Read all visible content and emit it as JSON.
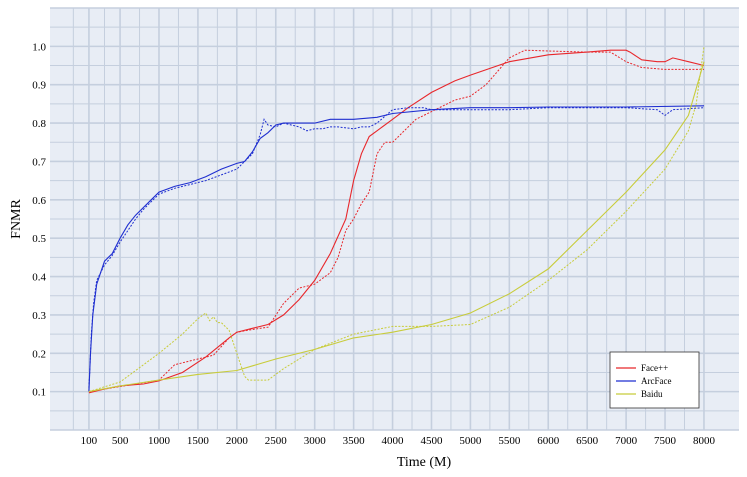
{
  "chart_data": {
    "type": "line",
    "xlabel": "Time (M)",
    "ylabel": "FNMR",
    "xticks": [
      "100",
      "500",
      "1000",
      "1500",
      "2000",
      "2500",
      "3000",
      "3500",
      "4000",
      "4500",
      "5000",
      "5500",
      "6000",
      "6500",
      "7000",
      "7500",
      "8000"
    ],
    "yticks": [
      "0.1",
      "0.2",
      "0.3",
      "0.4",
      "0.5",
      "0.6",
      "0.7",
      "0.8",
      "0.9",
      "1.0"
    ],
    "xlim": [
      -400,
      8450
    ],
    "ylim": [
      0,
      1.1
    ],
    "grid": true,
    "legend_position": "bottom-right",
    "colors": {
      "face": "#e8272b",
      "arc": "#1f2fd0",
      "baidu": "#c8cc3a",
      "grid": "#c5cfde",
      "plot_bg": "#e8edf5"
    },
    "series": [
      {
        "name": "Face++",
        "style": "solid",
        "color": "#e8272b",
        "x": [
          100,
          300,
          500,
          800,
          1000,
          1300,
          1600,
          1900,
          2000,
          2200,
          2400,
          2600,
          2800,
          3000,
          3200,
          3400,
          3500,
          3600,
          3700,
          3800,
          4000,
          4200,
          4500,
          4800,
          5000,
          5500,
          6000,
          6500,
          6800,
          7000,
          7050,
          7200,
          7400,
          7500,
          7600,
          7800,
          8000
        ],
        "y": [
          0.097,
          0.107,
          0.115,
          0.12,
          0.128,
          0.15,
          0.19,
          0.24,
          0.255,
          0.265,
          0.275,
          0.3,
          0.34,
          0.39,
          0.46,
          0.55,
          0.65,
          0.72,
          0.765,
          0.78,
          0.81,
          0.84,
          0.88,
          0.91,
          0.925,
          0.96,
          0.978,
          0.985,
          0.99,
          0.99,
          0.985,
          0.965,
          0.96,
          0.96,
          0.97,
          0.96,
          0.95
        ]
      },
      {
        "name": "Face++ (dotted)",
        "style": "dotted",
        "color": "#e8272b",
        "x": [
          100,
          400,
          700,
          1000,
          1200,
          1400,
          1500,
          1700,
          1900,
          2000,
          2200,
          2400,
          2600,
          2800,
          3000,
          3200,
          3300,
          3400,
          3500,
          3600,
          3700,
          3800,
          3900,
          4000,
          4300,
          4500,
          4800,
          5000,
          5200,
          5500,
          5700,
          6000,
          6500,
          6800,
          7000,
          7200,
          7500,
          8000
        ],
        "y": [
          0.1,
          0.11,
          0.12,
          0.13,
          0.17,
          0.18,
          0.185,
          0.195,
          0.24,
          0.255,
          0.262,
          0.268,
          0.33,
          0.37,
          0.38,
          0.41,
          0.45,
          0.52,
          0.55,
          0.59,
          0.62,
          0.72,
          0.75,
          0.75,
          0.81,
          0.83,
          0.86,
          0.87,
          0.9,
          0.97,
          0.99,
          0.988,
          0.985,
          0.985,
          0.96,
          0.945,
          0.94,
          0.94
        ]
      },
      {
        "name": "ArcFace",
        "style": "solid",
        "color": "#1f2fd0",
        "x": [
          100,
          120,
          150,
          200,
          250,
          300,
          400,
          500,
          600,
          700,
          800,
          900,
          1000,
          1200,
          1400,
          1600,
          1800,
          2000,
          2100,
          2200,
          2300,
          2400,
          2500,
          2600,
          2800,
          3000,
          3200,
          3500,
          3800,
          4000,
          4500,
          5000,
          5500,
          6000,
          6500,
          7000,
          8000
        ],
        "y": [
          0.1,
          0.2,
          0.3,
          0.38,
          0.41,
          0.44,
          0.46,
          0.5,
          0.535,
          0.56,
          0.58,
          0.6,
          0.62,
          0.635,
          0.645,
          0.66,
          0.68,
          0.695,
          0.7,
          0.725,
          0.76,
          0.775,
          0.795,
          0.8,
          0.8,
          0.8,
          0.81,
          0.81,
          0.815,
          0.825,
          0.835,
          0.84,
          0.84,
          0.842,
          0.842,
          0.842,
          0.845
        ]
      },
      {
        "name": "ArcFace (dotted)",
        "style": "dotted",
        "color": "#1f2fd0",
        "x": [
          100,
          110,
          130,
          160,
          200,
          300,
          400,
          500,
          600,
          700,
          800,
          900,
          1000,
          1200,
          1400,
          1600,
          1800,
          2000,
          2100,
          2200,
          2300,
          2350,
          2400,
          2500,
          2600,
          2800,
          2900,
          3000,
          3100,
          3200,
          3300,
          3500,
          3600,
          3700,
          3800,
          4000,
          4200,
          4400,
          4500,
          4700,
          5000,
          5500,
          6000,
          6500,
          7000,
          7400,
          7500,
          7600,
          8000
        ],
        "y": [
          0.11,
          0.15,
          0.25,
          0.33,
          0.39,
          0.43,
          0.455,
          0.49,
          0.52,
          0.55,
          0.575,
          0.595,
          0.615,
          0.63,
          0.64,
          0.65,
          0.665,
          0.68,
          0.7,
          0.72,
          0.77,
          0.81,
          0.795,
          0.79,
          0.8,
          0.79,
          0.78,
          0.785,
          0.785,
          0.79,
          0.79,
          0.785,
          0.79,
          0.79,
          0.8,
          0.835,
          0.84,
          0.84,
          0.835,
          0.835,
          0.835,
          0.835,
          0.84,
          0.84,
          0.84,
          0.835,
          0.82,
          0.835,
          0.84
        ]
      },
      {
        "name": "Baidu",
        "style": "solid",
        "color": "#c8cc3a",
        "x": [
          100,
          500,
          1000,
          1500,
          2000,
          2500,
          3000,
          3500,
          4000,
          4500,
          5000,
          5500,
          6000,
          6500,
          7000,
          7500,
          7800,
          8000
        ],
        "y": [
          0.1,
          0.115,
          0.13,
          0.145,
          0.155,
          0.185,
          0.21,
          0.24,
          0.255,
          0.275,
          0.305,
          0.355,
          0.42,
          0.52,
          0.62,
          0.73,
          0.82,
          0.96
        ]
      },
      {
        "name": "Baidu (dotted)",
        "style": "dotted",
        "color": "#c8cc3a",
        "x": [
          100,
          500,
          1000,
          1300,
          1500,
          1600,
          1650,
          1700,
          1750,
          1800,
          1900,
          2000,
          2100,
          2150,
          2200,
          2400,
          2600,
          3000,
          3500,
          4000,
          4500,
          5000,
          5500,
          6000,
          6500,
          7000,
          7500,
          7800,
          7900,
          8000
        ],
        "y": [
          0.1,
          0.125,
          0.2,
          0.25,
          0.29,
          0.305,
          0.285,
          0.295,
          0.28,
          0.28,
          0.26,
          0.2,
          0.14,
          0.13,
          0.13,
          0.13,
          0.16,
          0.21,
          0.25,
          0.27,
          0.27,
          0.275,
          0.32,
          0.39,
          0.47,
          0.57,
          0.68,
          0.78,
          0.85,
          1.0
        ]
      }
    ],
    "legend": [
      "Face++",
      "ArcFace",
      "Baidu"
    ]
  }
}
